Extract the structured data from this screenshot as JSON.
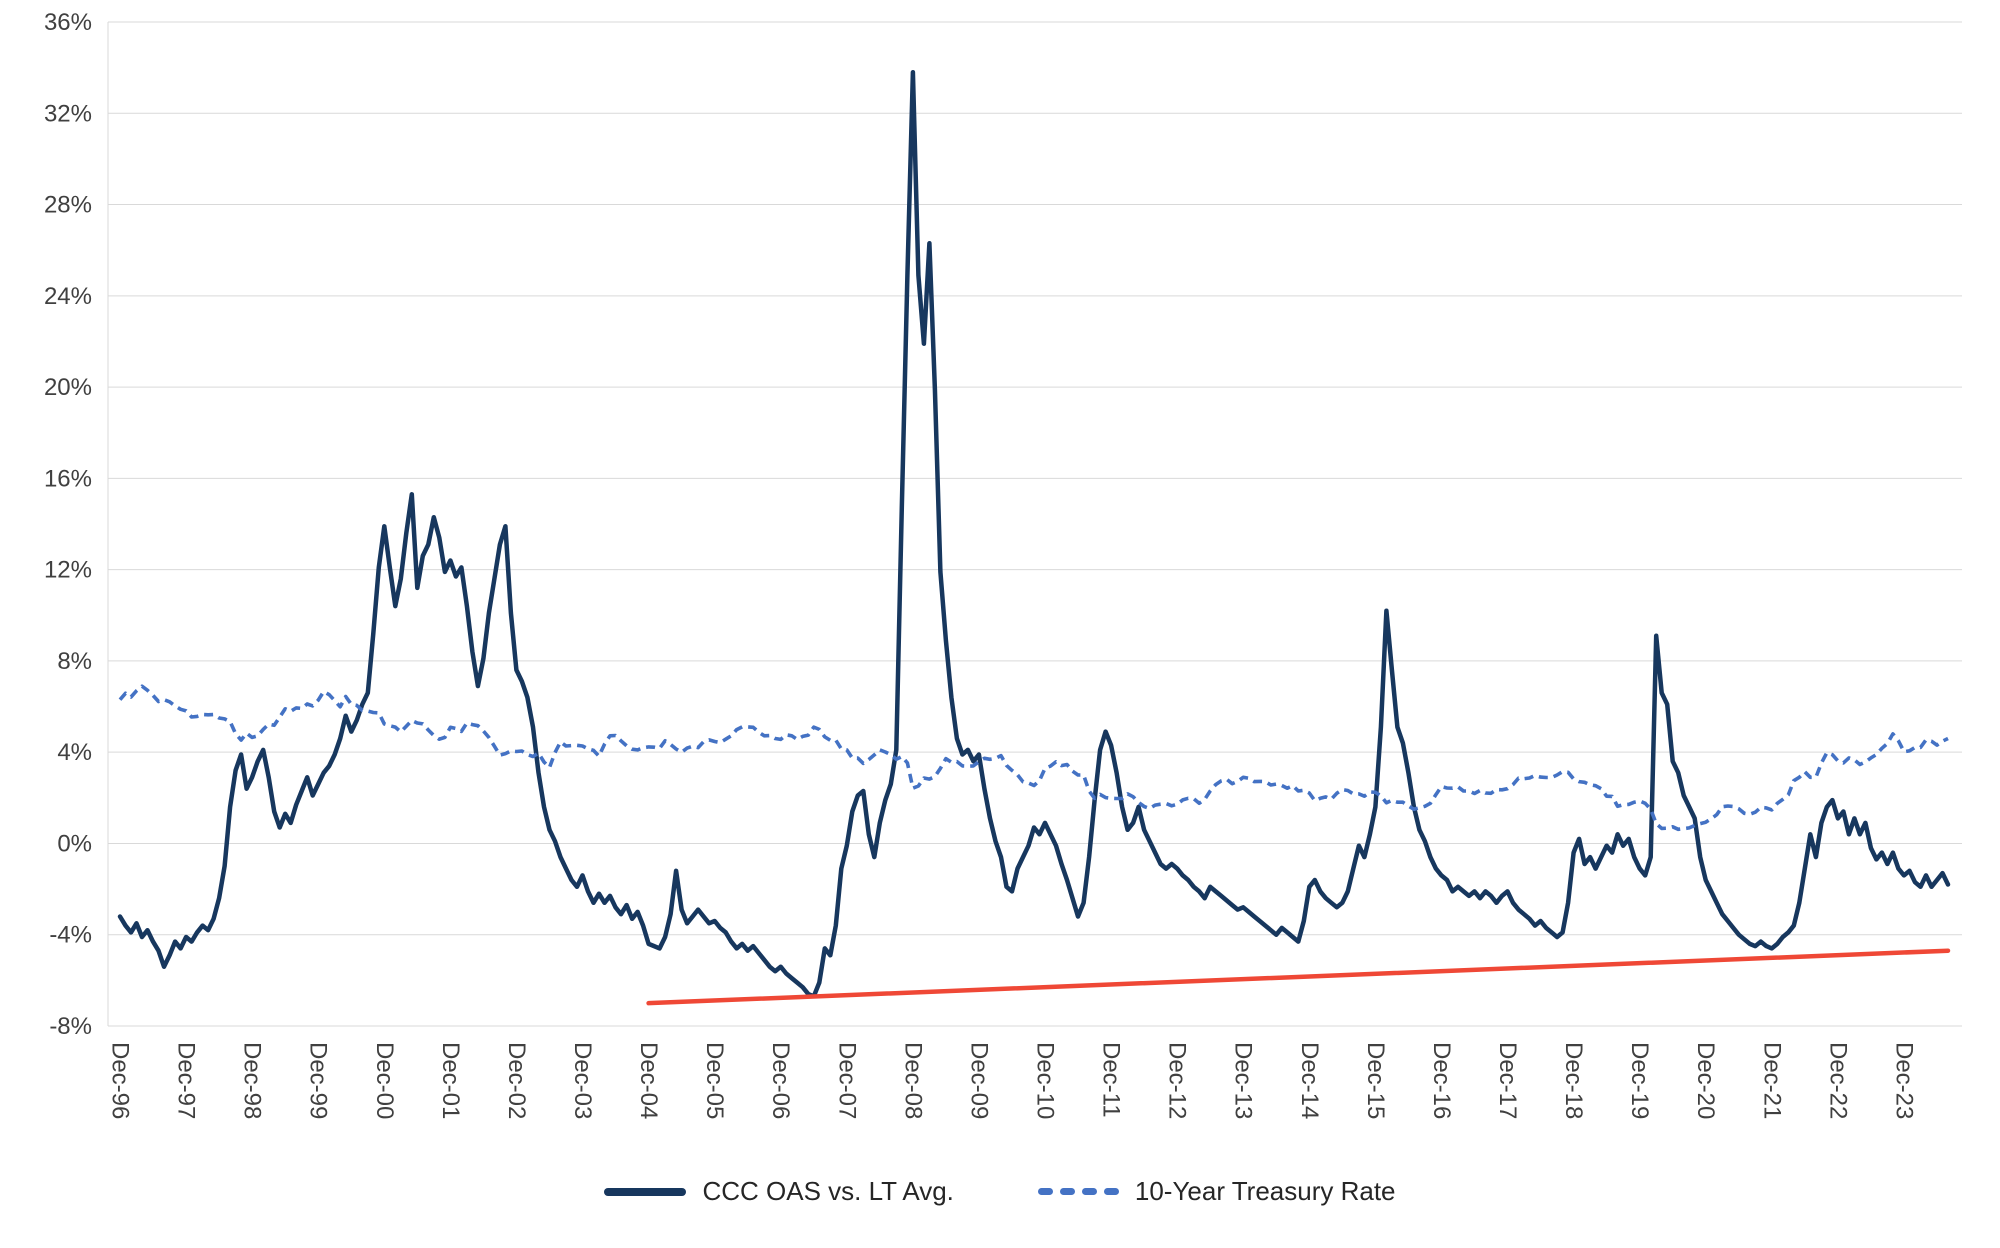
{
  "chart_data": {
    "type": "line",
    "title": "",
    "grid": "horizontal",
    "legend_position": "bottom",
    "ylim": [
      -8,
      36
    ],
    "y_ticks": [
      36,
      32,
      28,
      24,
      20,
      16,
      12,
      8,
      4,
      0,
      -4,
      -8
    ],
    "y_tick_suffix": "%",
    "x_unit": "month",
    "x_start": "Dec-96",
    "x_end": "Aug-24",
    "x_tick_labels": [
      "Dec-96",
      "Dec-97",
      "Dec-98",
      "Dec-99",
      "Dec-00",
      "Dec-01",
      "Dec-02",
      "Dec-03",
      "Dec-04",
      "Dec-05",
      "Dec-06",
      "Dec-07",
      "Dec-08",
      "Dec-09",
      "Dec-10",
      "Dec-11",
      "Dec-12",
      "Dec-13",
      "Dec-14",
      "Dec-15",
      "Dec-16",
      "Dec-17",
      "Dec-18",
      "Dec-19",
      "Dec-20",
      "Dec-21",
      "Dec-22",
      "Dec-23"
    ],
    "colors": {
      "grid": "#d9d9d9",
      "axis_text": "#404040",
      "legend_text": "#262626"
    },
    "series": [
      {
        "name": "CCC OAS vs. LT Avg.",
        "color": "#17375e",
        "style": "solid",
        "values": [
          -3.2,
          -3.6,
          -3.9,
          -3.5,
          -4.1,
          -3.8,
          -4.3,
          -4.7,
          -5.4,
          -4.9,
          -4.3,
          -4.6,
          -4.1,
          -4.3,
          -3.9,
          -3.6,
          -3.8,
          -3.3,
          -2.4,
          -1.0,
          1.6,
          3.2,
          3.9,
          2.4,
          2.9,
          3.6,
          4.1,
          2.9,
          1.4,
          0.7,
          1.3,
          0.9,
          1.7,
          2.3,
          2.9,
          2.1,
          2.6,
          3.1,
          3.4,
          3.9,
          4.6,
          5.6,
          4.9,
          5.4,
          6.1,
          6.6,
          9.2,
          12.1,
          13.9,
          12.1,
          10.4,
          11.6,
          13.6,
          15.3,
          11.2,
          12.6,
          13.1,
          14.3,
          13.4,
          11.9,
          12.4,
          11.7,
          12.1,
          10.4,
          8.4,
          6.9,
          8.1,
          10.1,
          11.6,
          13.1,
          13.9,
          10.1,
          7.6,
          7.1,
          6.4,
          5.1,
          3.1,
          1.6,
          0.6,
          0.1,
          -0.6,
          -1.1,
          -1.6,
          -1.9,
          -1.4,
          -2.1,
          -2.6,
          -2.2,
          -2.6,
          -2.3,
          -2.8,
          -3.1,
          -2.7,
          -3.3,
          -3.0,
          -3.6,
          -4.4,
          -4.5,
          -4.6,
          -4.1,
          -3.1,
          -1.2,
          -2.9,
          -3.5,
          -3.2,
          -2.9,
          -3.2,
          -3.5,
          -3.4,
          -3.7,
          -3.9,
          -4.3,
          -4.6,
          -4.4,
          -4.7,
          -4.5,
          -4.8,
          -5.1,
          -5.4,
          -5.6,
          -5.4,
          -5.7,
          -5.9,
          -6.1,
          -6.3,
          -6.6,
          -6.7,
          -6.1,
          -4.6,
          -4.9,
          -3.6,
          -1.1,
          -0.1,
          1.4,
          2.1,
          2.3,
          0.4,
          -0.6,
          0.9,
          1.9,
          2.6,
          4.1,
          14.9,
          24.9,
          33.8,
          24.9,
          21.9,
          26.3,
          19.9,
          11.9,
          8.9,
          6.4,
          4.6,
          3.9,
          4.1,
          3.6,
          3.9,
          2.4,
          1.1,
          0.1,
          -0.6,
          -1.9,
          -2.1,
          -1.1,
          -0.6,
          -0.1,
          0.7,
          0.4,
          0.9,
          0.4,
          -0.1,
          -0.9,
          -1.6,
          -2.4,
          -3.2,
          -2.6,
          -0.6,
          1.9,
          4.1,
          4.9,
          4.3,
          3.1,
          1.6,
          0.6,
          0.9,
          1.6,
          0.6,
          0.1,
          -0.4,
          -0.9,
          -1.1,
          -0.9,
          -1.1,
          -1.4,
          -1.6,
          -1.9,
          -2.1,
          -2.4,
          -1.9,
          -2.1,
          -2.3,
          -2.5,
          -2.7,
          -2.9,
          -2.8,
          -3.0,
          -3.2,
          -3.4,
          -3.6,
          -3.8,
          -4.0,
          -3.7,
          -3.9,
          -4.1,
          -4.3,
          -3.4,
          -1.9,
          -1.6,
          -2.1,
          -2.4,
          -2.6,
          -2.8,
          -2.6,
          -2.1,
          -1.1,
          -0.1,
          -0.6,
          0.4,
          1.6,
          5.1,
          10.2,
          7.6,
          5.1,
          4.4,
          3.1,
          1.6,
          0.6,
          0.1,
          -0.6,
          -1.1,
          -1.4,
          -1.6,
          -2.1,
          -1.9,
          -2.1,
          -2.3,
          -2.1,
          -2.4,
          -2.1,
          -2.3,
          -2.6,
          -2.3,
          -2.1,
          -2.6,
          -2.9,
          -3.1,
          -3.3,
          -3.6,
          -3.4,
          -3.7,
          -3.9,
          -4.1,
          -3.9,
          -2.6,
          -0.4,
          0.2,
          -0.9,
          -0.6,
          -1.1,
          -0.6,
          -0.1,
          -0.4,
          0.4,
          -0.1,
          0.2,
          -0.6,
          -1.1,
          -1.4,
          -0.6,
          9.1,
          6.6,
          6.1,
          3.6,
          3.1,
          2.1,
          1.6,
          1.1,
          -0.6,
          -1.6,
          -2.1,
          -2.6,
          -3.1,
          -3.4,
          -3.7,
          -4.0,
          -4.2,
          -4.4,
          -4.5,
          -4.3,
          -4.5,
          -4.6,
          -4.4,
          -4.1,
          -3.9,
          -3.6,
          -2.6,
          -1.1,
          0.4,
          -0.6,
          0.9,
          1.6,
          1.9,
          1.1,
          1.4,
          0.4,
          1.1,
          0.4,
          0.9,
          -0.2,
          -0.7,
          -0.4,
          -0.9,
          -0.4,
          -1.1,
          -1.4,
          -1.2,
          -1.7,
          -1.9,
          -1.4,
          -1.9,
          -1.6,
          -1.3,
          -1.8
        ]
      },
      {
        "name": "10-Year Treasury Rate",
        "color": "#4472c4",
        "style": "dashed",
        "values": [
          6.3,
          6.58,
          6.42,
          6.69,
          6.89,
          6.71,
          6.49,
          6.22,
          6.3,
          6.21,
          6.03,
          5.88,
          5.81,
          5.54,
          5.57,
          5.65,
          5.64,
          5.65,
          5.5,
          5.46,
          5.34,
          4.81,
          4.53,
          4.83,
          4.65,
          4.72,
          5.0,
          5.23,
          5.18,
          5.54,
          5.9,
          5.79,
          5.94,
          5.92,
          6.11,
          6.03,
          6.28,
          6.66,
          6.52,
          6.26,
          5.99,
          6.44,
          6.1,
          6.05,
          5.83,
          5.8,
          5.74,
          5.72,
          5.24,
          5.16,
          5.1,
          4.89,
          5.14,
          5.39,
          5.28,
          5.24,
          4.97,
          4.73,
          4.57,
          4.65,
          5.09,
          5.04,
          4.91,
          5.28,
          5.21,
          5.16,
          4.93,
          4.65,
          4.26,
          3.87,
          3.94,
          4.05,
          4.03,
          4.05,
          3.9,
          3.81,
          3.96,
          3.57,
          3.33,
          3.98,
          4.45,
          4.27,
          4.29,
          4.3,
          4.27,
          4.15,
          4.08,
          3.83,
          4.35,
          4.72,
          4.73,
          4.5,
          4.28,
          4.13,
          4.1,
          4.19,
          4.23,
          4.22,
          4.17,
          4.5,
          4.34,
          4.14,
          4.0,
          4.18,
          4.26,
          4.2,
          4.46,
          4.54,
          4.47,
          4.42,
          4.57,
          4.72,
          4.99,
          5.11,
          5.11,
          5.09,
          4.88,
          4.72,
          4.73,
          4.6,
          4.56,
          4.76,
          4.72,
          4.56,
          4.69,
          4.75,
          5.1,
          5.0,
          4.67,
          4.52,
          4.53,
          4.15,
          4.1,
          3.74,
          3.74,
          3.51,
          3.68,
          3.88,
          4.1,
          4.01,
          3.89,
          3.69,
          3.81,
          3.53,
          2.42,
          2.52,
          2.87,
          2.82,
          2.93,
          3.29,
          3.72,
          3.56,
          3.59,
          3.4,
          3.39,
          3.4,
          3.59,
          3.73,
          3.69,
          3.73,
          3.85,
          3.42,
          3.2,
          3.01,
          2.7,
          2.65,
          2.54,
          2.76,
          3.29,
          3.39,
          3.58,
          3.41,
          3.46,
          3.17,
          3.0,
          3.0,
          2.3,
          1.98,
          2.15,
          2.01,
          1.98,
          1.97,
          1.97,
          2.17,
          2.05,
          1.8,
          1.62,
          1.53,
          1.68,
          1.72,
          1.75,
          1.65,
          1.72,
          1.91,
          1.98,
          1.96,
          1.76,
          1.93,
          2.3,
          2.58,
          2.74,
          2.81,
          2.62,
          2.72,
          2.9,
          2.86,
          2.71,
          2.72,
          2.71,
          2.56,
          2.6,
          2.54,
          2.42,
          2.53,
          2.3,
          2.33,
          2.21,
          1.88,
          1.98,
          2.04,
          1.94,
          2.2,
          2.36,
          2.32,
          2.17,
          2.17,
          2.07,
          2.26,
          2.24,
          2.09,
          1.78,
          1.89,
          1.81,
          1.81,
          1.64,
          1.5,
          1.56,
          1.63,
          1.76,
          2.14,
          2.49,
          2.43,
          2.42,
          2.48,
          2.3,
          2.3,
          2.19,
          2.32,
          2.21,
          2.2,
          2.36,
          2.35,
          2.4,
          2.58,
          2.86,
          2.84,
          2.87,
          2.98,
          2.91,
          2.89,
          2.89,
          3.0,
          3.15,
          3.12,
          2.83,
          2.71,
          2.68,
          2.57,
          2.53,
          2.4,
          2.07,
          2.06,
          1.63,
          1.7,
          1.71,
          1.81,
          1.86,
          1.76,
          1.5,
          0.87,
          0.66,
          0.67,
          0.73,
          0.62,
          0.65,
          0.68,
          0.79,
          0.87,
          0.93,
          1.08,
          1.26,
          1.61,
          1.64,
          1.62,
          1.52,
          1.32,
          1.28,
          1.37,
          1.58,
          1.56,
          1.47,
          1.76,
          1.93,
          2.13,
          2.75,
          2.9,
          3.14,
          2.9,
          2.9,
          3.52,
          3.98,
          3.89,
          3.62,
          3.53,
          3.75,
          3.66,
          3.46,
          3.57,
          3.75,
          3.9,
          4.17,
          4.38,
          4.8,
          4.5,
          4.02,
          4.06,
          4.21,
          4.21,
          4.54,
          4.48,
          4.31,
          4.48,
          4.6
        ]
      },
      {
        "name": "trend-line",
        "color": "#ef4836",
        "style": "solid",
        "trend": {
          "start_label": "Dec-04",
          "start_index": 96,
          "start_value": -7.0,
          "end_label": "Aug-24",
          "end_index": 332,
          "end_value": -4.7
        }
      }
    ]
  }
}
